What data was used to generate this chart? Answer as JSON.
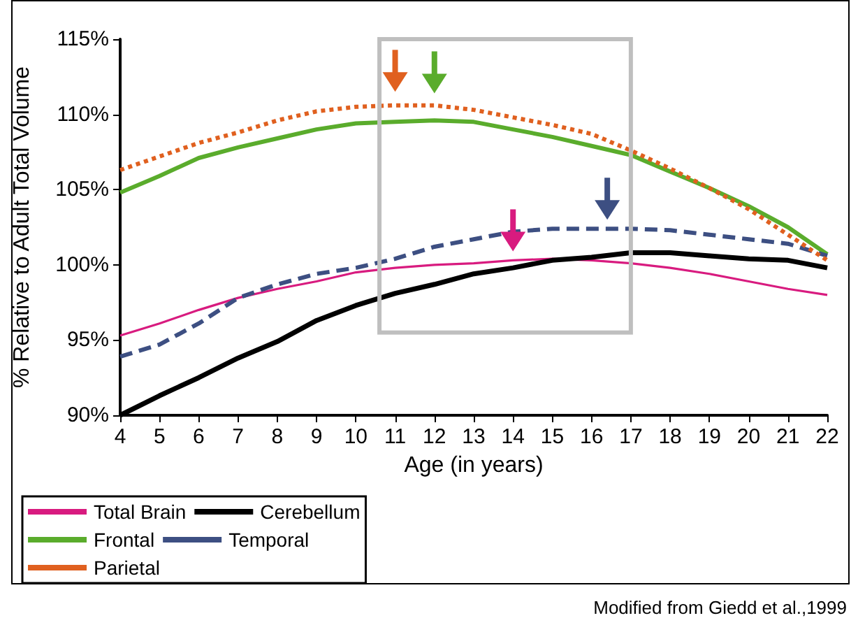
{
  "chart_data": {
    "type": "line",
    "xlabel": "Age (in years)",
    "ylabel": "% Relative to Adult Total Volume",
    "x": [
      4,
      5,
      6,
      7,
      8,
      9,
      10,
      11,
      12,
      13,
      14,
      15,
      16,
      17,
      18,
      19,
      20,
      21,
      22
    ],
    "series": [
      {
        "name": "Total Brain",
        "color": "#d81b7f",
        "line_style": "solid",
        "values": [
          95.3,
          96.1,
          97.0,
          97.8,
          98.4,
          98.9,
          99.5,
          99.8,
          100.0,
          100.1,
          100.3,
          100.4,
          100.3,
          100.1,
          99.8,
          99.4,
          98.9,
          98.4,
          98.0
        ]
      },
      {
        "name": "Cerebellum",
        "color": "#000000",
        "line_style": "solid",
        "values": [
          90.0,
          91.3,
          92.5,
          93.8,
          94.9,
          96.3,
          97.3,
          98.1,
          98.7,
          99.4,
          99.8,
          100.3,
          100.5,
          100.8,
          100.8,
          100.6,
          100.4,
          100.3,
          99.8
        ]
      },
      {
        "name": "Frontal",
        "color": "#5aac2c",
        "line_style": "solid",
        "values": [
          104.8,
          105.9,
          107.1,
          107.8,
          108.4,
          109.0,
          109.4,
          109.5,
          109.6,
          109.5,
          109.0,
          108.5,
          107.9,
          107.3,
          106.2,
          105.1,
          103.9,
          102.5,
          100.7
        ]
      },
      {
        "name": "Temporal",
        "color": "#3d4f82",
        "line_style": "dashed",
        "values": [
          93.9,
          94.7,
          96.1,
          97.8,
          98.7,
          99.4,
          99.8,
          100.4,
          101.2,
          101.7,
          102.2,
          102.4,
          102.4,
          102.4,
          102.3,
          102.0,
          101.7,
          101.4,
          100.6
        ]
      },
      {
        "name": "Parietal",
        "color": "#e0601f",
        "line_style": "dotted",
        "values": [
          106.3,
          107.2,
          108.1,
          108.8,
          109.6,
          110.2,
          110.5,
          110.6,
          110.6,
          110.3,
          109.8,
          109.3,
          108.7,
          107.6,
          106.4,
          105.1,
          103.7,
          102.0,
          100.3
        ]
      }
    ],
    "xlim": [
      4,
      22
    ],
    "xticks": [
      4,
      5,
      6,
      7,
      8,
      9,
      10,
      11,
      12,
      13,
      14,
      15,
      16,
      17,
      18,
      19,
      20,
      21,
      22
    ],
    "ylim": [
      90,
      115
    ],
    "yticks": [
      {
        "value": 90,
        "label": "90%"
      },
      {
        "value": 95,
        "label": "95%"
      },
      {
        "value": 100,
        "label": "100%"
      },
      {
        "value": 105,
        "label": "105%"
      },
      {
        "value": 110,
        "label": "110%"
      },
      {
        "value": 115,
        "label": "115%"
      }
    ],
    "grid": false,
    "legend": "bottom left",
    "marker": "none",
    "annotations": [
      "Modified from Giedd et al.,1999"
    ]
  }
}
